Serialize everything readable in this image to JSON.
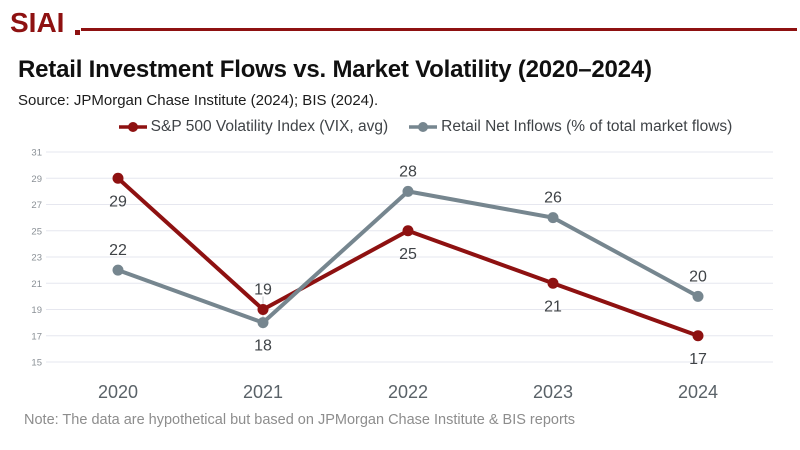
{
  "header": {
    "logo_text": "SIAI"
  },
  "chart": {
    "title": "Retail Investment Flows vs. Market Volatility (2020–2024)",
    "source": "Source: JPMorgan Chase Institute (2024); BIS (2024).",
    "note": "Note: The data are hypothetical but based on JPMorgan Chase Institute & BIS reports"
  },
  "colors": {
    "brand_red": "#8E1111",
    "title": "#101010",
    "source": "#1C1C1C",
    "legend_text": "#3F4347",
    "grid": "#E6E7EF",
    "ytick": "#8A9096",
    "xtick": "#5A6268",
    "datalabel": "#3F4347",
    "leader": "#C4C7CB",
    "note": "#8D8D8D"
  },
  "chart_data": {
    "type": "line",
    "title": "Retail Investment Flows vs. Market Volatility (2020–2024)",
    "categories": [
      "2020",
      "2021",
      "2022",
      "2023",
      "2024"
    ],
    "series": [
      {
        "name": "S&P 500 Volatility Index (VIX, avg)",
        "values": [
          29,
          19,
          25,
          21,
          17
        ],
        "color": "#8E1111",
        "label_positions": [
          "below",
          "above",
          "below",
          "below",
          "below"
        ],
        "leader_at": [
          1
        ]
      },
      {
        "name": "Retail Net Inflows (% of total market flows)",
        "values": [
          22,
          18,
          28,
          26,
          20
        ],
        "color": "#76868F",
        "label_positions": [
          "above",
          "below",
          "above",
          "above",
          "above"
        ],
        "leader_at": []
      }
    ],
    "ylim": [
      15,
      31
    ],
    "yticks": [
      15,
      17,
      19,
      21,
      23,
      25,
      27,
      29,
      31
    ],
    "grid": true,
    "legend_position": "top",
    "xlabel": "",
    "ylabel": ""
  }
}
